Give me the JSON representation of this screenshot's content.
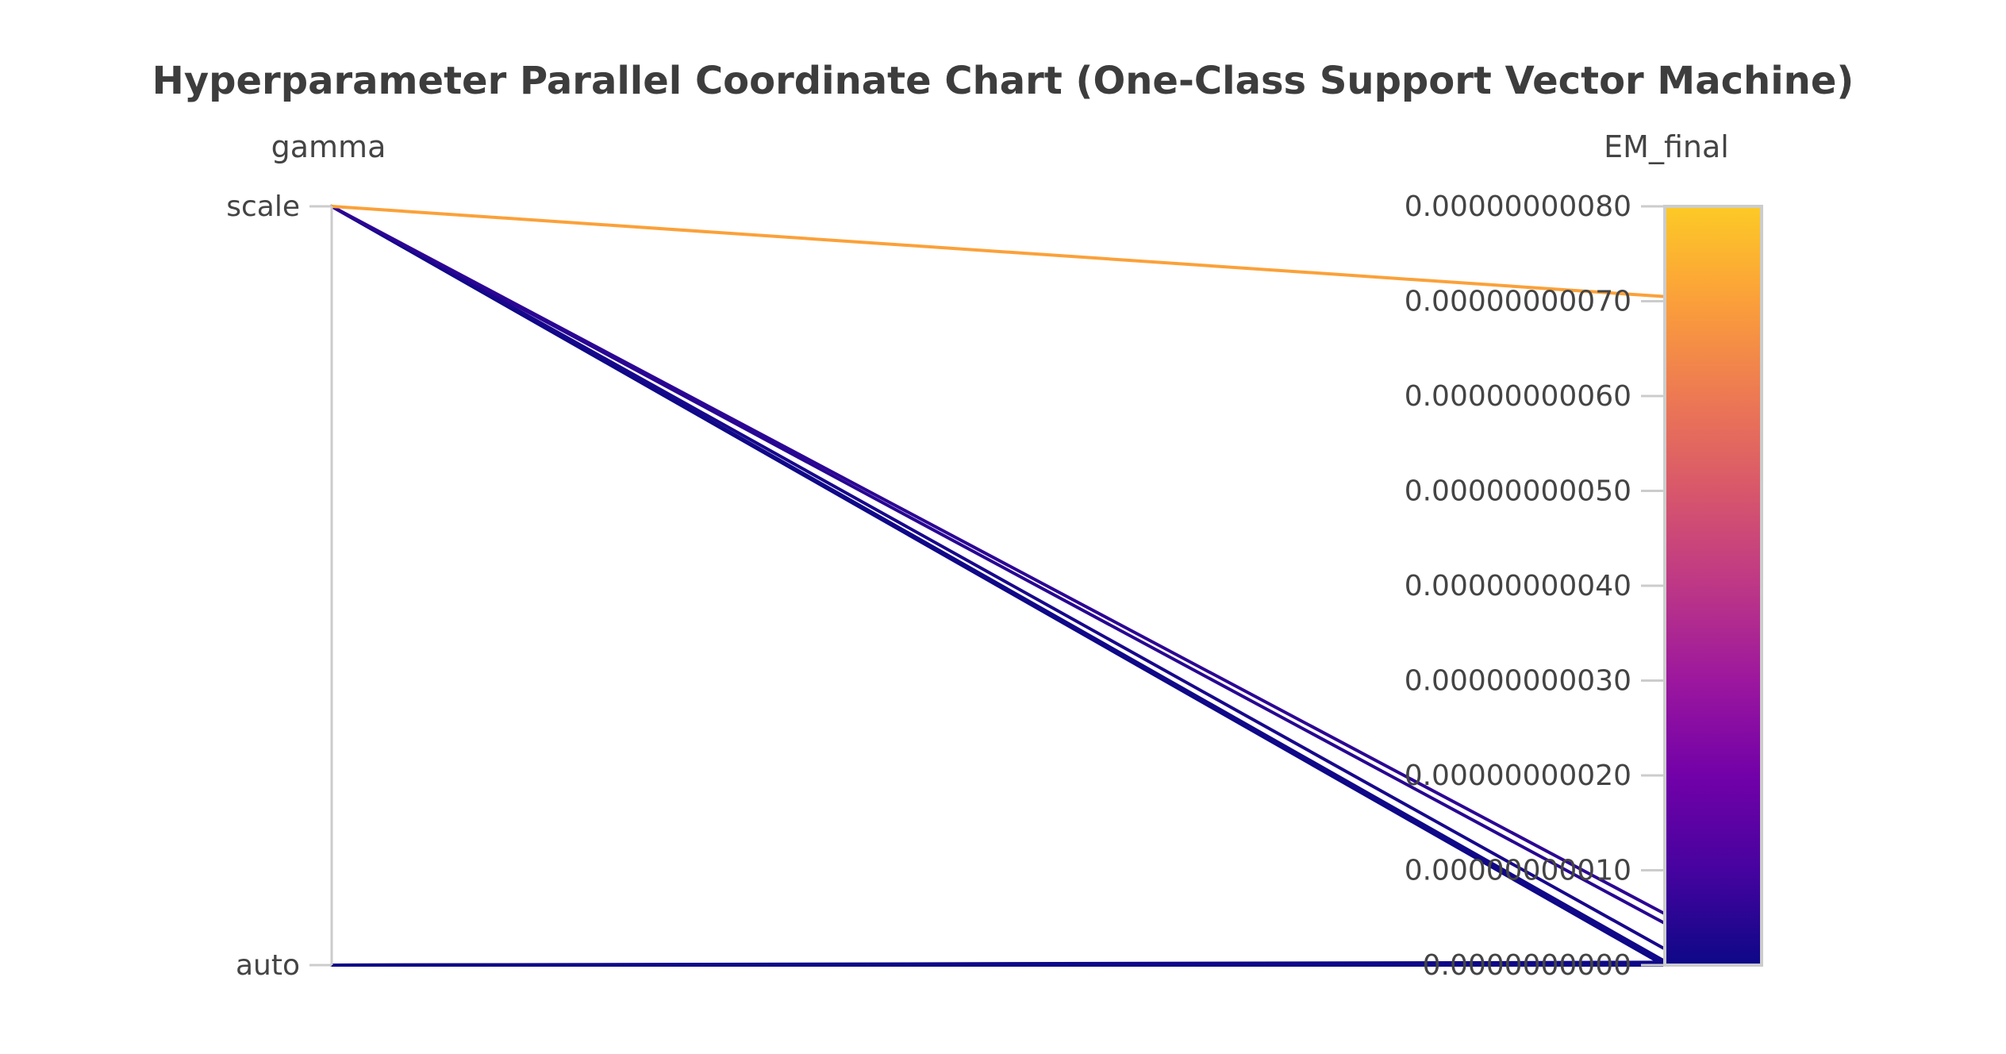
{
  "chart_data": {
    "type": "parallel-coordinates",
    "title": "Hyperparameter Parallel Coordinate Chart (One-Class Support Vector Machine)",
    "dimensions": [
      {
        "name": "gamma",
        "type": "categorical",
        "categories": [
          "auto",
          "scale"
        ]
      },
      {
        "name": "EM_final",
        "type": "numeric",
        "range": [
          0,
          8e-10
        ]
      }
    ],
    "em_ticks": [
      "0.0000000000",
      "0.00000000010",
      "0.00000000020",
      "0.00000000030",
      "0.00000000040",
      "0.00000000050",
      "0.00000000060",
      "0.00000000070",
      "0.00000000080"
    ],
    "em_tick_values": [
      0,
      1e-10,
      2e-10,
      3e-10,
      4e-10,
      5e-10,
      6e-10,
      7e-10,
      8e-10
    ],
    "colorscale": [
      "#0d0887",
      "#46039f",
      "#7201a8",
      "#9c179e",
      "#bd3786",
      "#d8576b",
      "#ed7953",
      "#fb9f3a",
      "#fdca26"
    ],
    "line_color_by": "EM_final",
    "lines": [
      {
        "gamma": "scale",
        "EM_final": 7.05e-10
      },
      {
        "gamma": "scale",
        "EM_final": 5.5e-11
      },
      {
        "gamma": "scale",
        "EM_final": 4.5e-11
      },
      {
        "gamma": "scale",
        "EM_final": 1.8e-11
      },
      {
        "gamma": "scale",
        "EM_final": 5e-12
      },
      {
        "gamma": "scale",
        "EM_final": 3e-12
      },
      {
        "gamma": "scale",
        "EM_final": 2e-12
      },
      {
        "gamma": "scale",
        "EM_final": 1e-12
      },
      {
        "gamma": "scale",
        "EM_final": 5e-13
      },
      {
        "gamma": "auto",
        "EM_final": 3e-12
      },
      {
        "gamma": "auto",
        "EM_final": 2e-12
      },
      {
        "gamma": "auto",
        "EM_final": 1e-12
      },
      {
        "gamma": "auto",
        "EM_final": 5e-13
      },
      {
        "gamma": "auto",
        "EM_final": 0
      }
    ]
  }
}
